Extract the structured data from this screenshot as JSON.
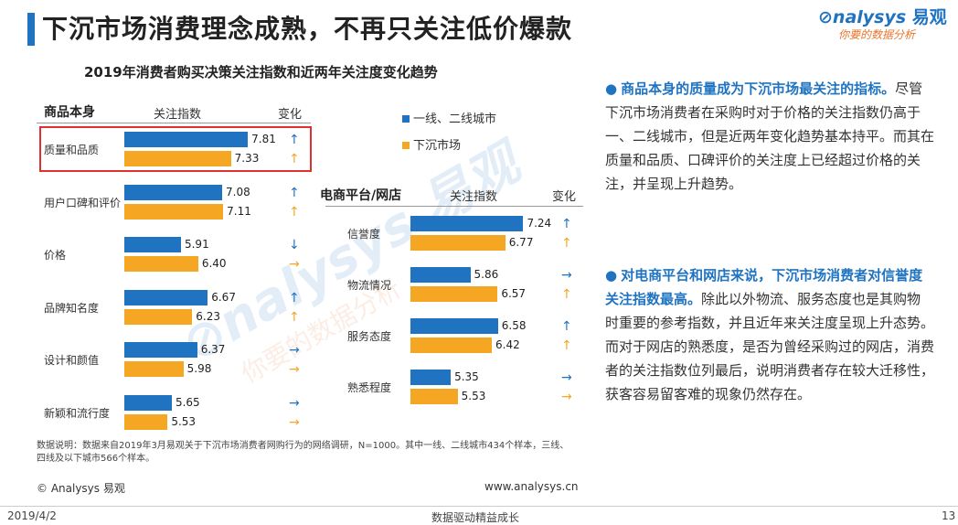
{
  "header": {
    "title": "下沉市场消费理念成熟，不再只关注低价爆款",
    "logo_main": "nalysys",
    "logo_brand": "易观",
    "logo_tagline": "你要的数据分析"
  },
  "chart_data": [
    {
      "type": "bar",
      "title": "2019年消费者购买决策关注指数和近两年关注度变化趋势",
      "group_label": "商品本身",
      "value_header": "关注指数",
      "change_header": "变化",
      "categories": [
        "质量和品质",
        "用户口碑和评价",
        "价格",
        "品牌知名度",
        "设计和颜值",
        "新颖和流行度"
      ],
      "series": [
        {
          "name": "一线、二线城市",
          "color": "#1f73c1",
          "values": [
            7.81,
            7.08,
            5.91,
            6.67,
            6.37,
            5.65
          ],
          "change": [
            "up",
            "up",
            "down",
            "up",
            "right",
            "right"
          ]
        },
        {
          "name": "下沉市场",
          "color": "#f5a623",
          "values": [
            7.33,
            7.11,
            6.4,
            6.23,
            5.98,
            5.53
          ],
          "change": [
            "up",
            "up",
            "right",
            "up",
            "right",
            "right"
          ]
        }
      ],
      "highlight_category": "质量和品质"
    },
    {
      "type": "bar",
      "group_label": "电商平台/网店",
      "value_header": "关注指数",
      "change_header": "变化",
      "categories": [
        "信誉度",
        "物流情况",
        "服务态度",
        "熟悉程度"
      ],
      "series": [
        {
          "name": "一线、二线城市",
          "color": "#1f73c1",
          "values": [
            7.24,
            5.86,
            6.58,
            5.35
          ],
          "change": [
            "up",
            "right",
            "up",
            "right"
          ]
        },
        {
          "name": "下沉市场",
          "color": "#f5a623",
          "values": [
            6.77,
            6.57,
            6.42,
            5.53
          ],
          "change": [
            "up",
            "up",
            "up",
            "right"
          ]
        }
      ]
    }
  ],
  "legend": [
    "一线、二线城市",
    "下沉市场"
  ],
  "note": "数据说明：数据来自2019年3月易观关于下沉市场消费者网购行为的网络调研，N=1000。其中一线、二线城市434个样本，三线、四线及以下城市566个样本。",
  "copyright": "© Analysys 易观",
  "site": "www.analysys.cn",
  "watermark": {
    "main": "Analysys 易观",
    "sub": "你要的数据分析"
  },
  "insights": [
    {
      "bold": "商品本身的质量成为下沉市场最关注的指标。",
      "text": "尽管下沉市场消费者在采购时对于价格的关注指数仍高于一、二线城市，但是近两年变化趋势基本持平。而其在质量和品质、口碑评价的关注度上已经超过价格的关注，并呈现上升趋势。"
    },
    {
      "bold": "对电商平台和网店来说，下沉市场消费者对信誉度关注指数最高。",
      "text": "除此以外物流、服务态度也是其购物时重要的参考指数，并且近年来关注度呈现上升态势。而对于网店的熟悉度，是否为曾经采购过的网店，消费者的关注指数位列最后，说明消费者存在较大迁移性，获客容易留客难的现象仍然存在。"
    }
  ],
  "footer": {
    "date": "2019/4/2",
    "center": "数据驱动精益成长",
    "page": "13"
  }
}
